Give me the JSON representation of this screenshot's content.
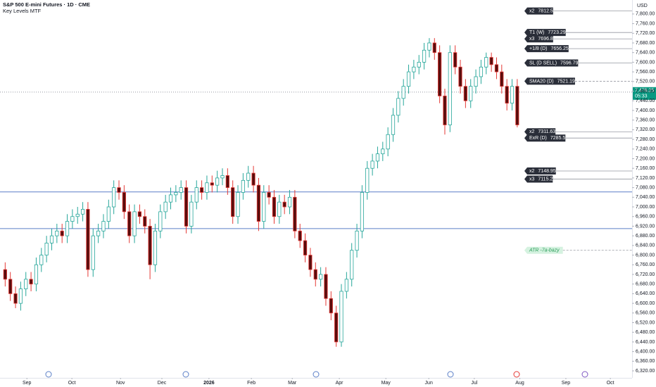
{
  "chart_data": {
    "type": "candlestick",
    "title": "S&P 500 E-mini Futures · 1D · CME",
    "subtitle": "Key Levels MTF",
    "currency": "USD",
    "up_color": "#26a69a",
    "down_color": "#e53935",
    "x": [
      0,
      1,
      2,
      3,
      4,
      5,
      6,
      7,
      8,
      9,
      10,
      11,
      12,
      13,
      14,
      15,
      16,
      17,
      18,
      19,
      20,
      21,
      22,
      23,
      24,
      25,
      26,
      27,
      28,
      29,
      30,
      31,
      32,
      33,
      34,
      35,
      36,
      37,
      38,
      39,
      40,
      41,
      42,
      43,
      44,
      45,
      46,
      47,
      48,
      49,
      50,
      51,
      52,
      53,
      54,
      55,
      56,
      57,
      58,
      59,
      60,
      61,
      62,
      63,
      64,
      65,
      66,
      67,
      68,
      69,
      70,
      71,
      72,
      73,
      74,
      75,
      76,
      77,
      78,
      79,
      80,
      81,
      82,
      83,
      84,
      85,
      86,
      87,
      88,
      89,
      90,
      91,
      92,
      93,
      94,
      95,
      96,
      97,
      98,
      99
    ],
    "open": [
      6740,
      6700,
      6640,
      6600,
      6660,
      6700,
      6680,
      6760,
      6800,
      6850,
      6880,
      6900,
      6880,
      6940,
      6960,
      6970,
      6990,
      6740,
      6880,
      6900,
      6940,
      7000,
      7080,
      7060,
      6980,
      6880,
      6980,
      6960,
      6920,
      6760,
      6900,
      6980,
      7020,
      7050,
      7060,
      7080,
      6920,
      7020,
      7080,
      7060,
      7100,
      7090,
      7120,
      7130,
      7080,
      6960,
      7060,
      7110,
      7140,
      7090,
      6940,
      7060,
      7040,
      6960,
      7020,
      7000,
      7040,
      6900,
      6860,
      6800,
      6740,
      6700,
      6720,
      6620,
      6560,
      6440,
      6650,
      6700,
      6820,
      6900,
      7060,
      7160,
      7190,
      7220,
      7240,
      7300,
      7380,
      7450,
      7500,
      7560,
      7580,
      7600,
      7650,
      7680,
      7640,
      7460,
      7340,
      7640,
      7580,
      7500,
      7440,
      7500,
      7540,
      7580,
      7620,
      7590,
      7560,
      7500,
      7430,
      7500
    ],
    "high": [
      6770,
      6730,
      6670,
      6690,
      6730,
      6730,
      6790,
      6830,
      6880,
      6910,
      6930,
      6930,
      6970,
      6990,
      7000,
      7020,
      7020,
      6910,
      6930,
      6970,
      7030,
      7110,
      7110,
      7090,
      7010,
      7010,
      7010,
      6990,
      6950,
      6930,
      7010,
      7050,
      7080,
      7090,
      7110,
      7110,
      7050,
      7110,
      7110,
      7130,
      7130,
      7150,
      7160,
      7160,
      7110,
      7090,
      7140,
      7170,
      7170,
      7120,
      7090,
      7090,
      7070,
      7050,
      7050,
      7070,
      7070,
      6930,
      6890,
      6830,
      6770,
      6750,
      6750,
      6650,
      6590,
      6680,
      6730,
      6850,
      6930,
      7090,
      7190,
      7220,
      7250,
      7270,
      7330,
      7410,
      7480,
      7530,
      7590,
      7610,
      7630,
      7680,
      7700,
      7700,
      7670,
      7490,
      7670,
      7670,
      7610,
      7530,
      7530,
      7570,
      7610,
      7640,
      7640,
      7620,
      7590,
      7530,
      7530,
      7530
    ],
    "low": [
      6670,
      6610,
      6580,
      6570,
      6630,
      6650,
      6650,
      6730,
      6770,
      6820,
      6850,
      6850,
      6850,
      6910,
      6930,
      6940,
      6710,
      6710,
      6850,
      6870,
      6910,
      6970,
      7030,
      6950,
      6850,
      6850,
      6930,
      6890,
      6700,
      6730,
      6870,
      6950,
      6990,
      7020,
      7030,
      6890,
      6890,
      6990,
      7030,
      7030,
      7060,
      7060,
      7090,
      7050,
      6930,
      6930,
      7030,
      7080,
      7060,
      6900,
      6910,
      7010,
      6930,
      6930,
      6970,
      6970,
      6870,
      6830,
      6770,
      6710,
      6670,
      6670,
      6590,
      6530,
      6420,
      6420,
      6620,
      6670,
      6790,
      6870,
      7030,
      7130,
      7160,
      7190,
      7210,
      7270,
      7350,
      7420,
      7470,
      7530,
      7550,
      7570,
      7620,
      7610,
      7430,
      7300,
      7310,
      7550,
      7470,
      7410,
      7410,
      7470,
      7510,
      7550,
      7560,
      7530,
      7470,
      7400,
      7400,
      7330
    ],
    "close": [
      6700,
      6640,
      6600,
      6660,
      6700,
      6680,
      6760,
      6800,
      6850,
      6880,
      6900,
      6880,
      6940,
      6960,
      6970,
      6990,
      6740,
      6880,
      6900,
      6940,
      7000,
      7080,
      7060,
      6980,
      6880,
      6980,
      6960,
      6920,
      6760,
      6900,
      6980,
      7020,
      7050,
      7060,
      7080,
      6920,
      7020,
      7080,
      7060,
      7100,
      7090,
      7120,
      7130,
      7080,
      6960,
      7060,
      7110,
      7140,
      7090,
      6940,
      7060,
      7040,
      6960,
      7020,
      7000,
      7040,
      6900,
      6860,
      6800,
      6740,
      6700,
      6720,
      6620,
      6560,
      6440,
      6650,
      6700,
      6820,
      6900,
      7060,
      7160,
      7190,
      7220,
      7240,
      7300,
      7380,
      7450,
      7500,
      7560,
      7580,
      7600,
      7650,
      7680,
      7640,
      7460,
      7340,
      7640,
      7580,
      7500,
      7440,
      7500,
      7540,
      7580,
      7620,
      7590,
      7560,
      7500,
      7430,
      7500,
      7340
    ],
    "xlim": [
      -1,
      121.2
    ],
    "ylim": [
      6291,
      7858
    ],
    "xticks": [
      {
        "value": 4.2,
        "label": "Sep"
      },
      {
        "value": 12.9,
        "label": "Oct"
      },
      {
        "value": 22.3,
        "label": "Nov"
      },
      {
        "value": 30.3,
        "label": "Dec"
      },
      {
        "value": 39.4,
        "label": "2026"
      },
      {
        "value": 47.6,
        "label": "Feb"
      },
      {
        "value": 55.5,
        "label": "Mar"
      },
      {
        "value": 64.6,
        "label": "Apr"
      },
      {
        "value": 73.6,
        "label": "May"
      },
      {
        "value": 81.9,
        "label": "Jun"
      },
      {
        "value": 90.7,
        "label": "Jul"
      },
      {
        "value": 99.5,
        "label": "Aug"
      },
      {
        "value": 108.4,
        "label": "Sep"
      },
      {
        "value": 117.0,
        "label": "Oct"
      }
    ],
    "yticks": [
      {
        "value": 6320,
        "label": "6,320.00"
      },
      {
        "value": 6360,
        "label": "6,360.00"
      },
      {
        "value": 6400,
        "label": "6,400.00"
      },
      {
        "value": 6440,
        "label": "6,440.00"
      },
      {
        "value": 6480,
        "label": "6,480.00"
      },
      {
        "value": 6520,
        "label": "6,520.00"
      },
      {
        "value": 6560,
        "label": "6,560.00"
      },
      {
        "value": 6600,
        "label": "6,600.00"
      },
      {
        "value": 6640,
        "label": "6,640.00"
      },
      {
        "value": 6680,
        "label": "6,680.00"
      },
      {
        "value": 6720,
        "label": "6,720.00"
      },
      {
        "value": 6760,
        "label": "6,760.00"
      },
      {
        "value": 6800,
        "label": "6,800.00"
      },
      {
        "value": 6840,
        "label": "6,840.00"
      },
      {
        "value": 6880,
        "label": "6,880.00"
      },
      {
        "value": 6920,
        "label": "6,920.00"
      },
      {
        "value": 6960,
        "label": "6,960.00"
      },
      {
        "value": 7000,
        "label": "7,000.00"
      },
      {
        "value": 7040,
        "label": "7,040.00"
      },
      {
        "value": 7080,
        "label": "7,080.00"
      },
      {
        "value": 7120,
        "label": "7,120.00"
      },
      {
        "value": 7160,
        "label": "7,160.00"
      },
      {
        "value": 7200,
        "label": "7,200.00"
      },
      {
        "value": 7240,
        "label": "7,240.00"
      },
      {
        "value": 7280,
        "label": "7,280.00"
      },
      {
        "value": 7320,
        "label": "7,320.00"
      },
      {
        "value": 7360,
        "label": "7,360.00"
      },
      {
        "value": 7400,
        "label": "7,400.00"
      },
      {
        "value": 7440,
        "label": "7,440.00"
      },
      {
        "value": 7480,
        "label": "7,480.00"
      },
      {
        "value": 7520,
        "label": "7,520.00"
      },
      {
        "value": 7560,
        "label": "7,560.00"
      },
      {
        "value": 7600,
        "label": "7,600.00"
      },
      {
        "value": 7640,
        "label": "7,640.00"
      },
      {
        "value": 7680,
        "label": "7,680.00"
      },
      {
        "value": 7720,
        "label": "7,720.00"
      },
      {
        "value": 7760,
        "label": "7,760.00"
      },
      {
        "value": 7800,
        "label": "7,800.00"
      }
    ],
    "hlines": [
      7062,
      6910
    ],
    "hline_color": "#5b7fc7",
    "last_price": {
      "value": 7476.25,
      "label": "7,476.25"
    },
    "countdown": "05:33",
    "levels": [
      {
        "label": "x2",
        "value": 7812.5
      },
      {
        "label": "T1 (W)",
        "value": 7723.29
      },
      {
        "label": "x3",
        "value": 7696.8
      },
      {
        "label": "+1/8 (D)",
        "value": 7656.25
      },
      {
        "label": "SL (D SELL)",
        "value": 7596.79
      },
      {
        "label": "SMA20 (D)",
        "value": 7521.19,
        "dashed": true
      },
      {
        "label": "x2",
        "value": 7311.63
      },
      {
        "label": "ExR (D)",
        "value": 7285.5
      },
      {
        "label": "x2",
        "value": 7148.95
      },
      {
        "label": "x3",
        "value": 7115.2
      }
    ],
    "atr_level": {
      "label": "ATR -7a-bazy",
      "value": 6820,
      "dashed": true
    }
  }
}
